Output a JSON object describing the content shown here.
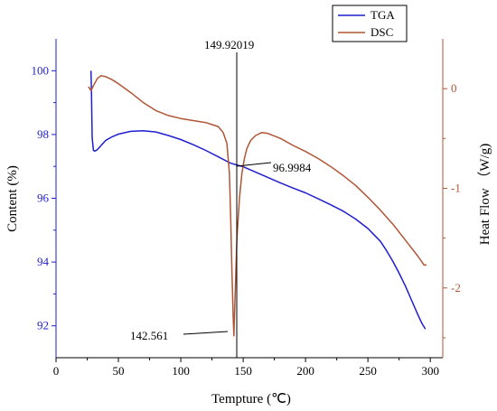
{
  "chart_data": {
    "type": "line",
    "xlabel": "Tempture (℃)",
    "ylabel_left": "Content (%)",
    "ylabel_right": "Heat Flow （W/g)",
    "xlim": [
      0,
      310
    ],
    "ylim_left": [
      91,
      101
    ],
    "ylim_right": [
      -2.7,
      0.5
    ],
    "x_ticks": [
      "0",
      "50",
      "100",
      "150",
      "200",
      "250",
      "300"
    ],
    "y_left_ticks": [
      "92",
      "94",
      "96",
      "98",
      "100"
    ],
    "y_right_ticks": [
      "0",
      "-1",
      "-2"
    ],
    "series": [
      {
        "name": "TGA",
        "axis": "left",
        "color": "#1f1fcf",
        "x": [
          28,
          28.5,
          29,
          30,
          31,
          33,
          36,
          40,
          45,
          50,
          60,
          70,
          80,
          90,
          100,
          110,
          120,
          130,
          140,
          150,
          160,
          170,
          180,
          190,
          200,
          210,
          220,
          230,
          240,
          250,
          260,
          265,
          270,
          275,
          280,
          285,
          290,
          293,
          296
        ],
        "y": [
          100.0,
          99.2,
          97.9,
          97.5,
          97.48,
          97.52,
          97.65,
          97.82,
          97.93,
          98.01,
          98.1,
          98.12,
          98.08,
          97.97,
          97.84,
          97.68,
          97.5,
          97.3,
          97.1,
          96.99,
          96.82,
          96.65,
          96.48,
          96.32,
          96.17,
          95.99,
          95.8,
          95.6,
          95.35,
          95.05,
          94.65,
          94.35,
          94.02,
          93.65,
          93.25,
          92.8,
          92.35,
          92.1,
          91.9
        ]
      },
      {
        "name": "DSC",
        "axis": "right",
        "color": "#b05535",
        "x": [
          26,
          27,
          28,
          30,
          33,
          36,
          40,
          45,
          50,
          60,
          70,
          80,
          90,
          100,
          110,
          120,
          125,
          130,
          134,
          137,
          139,
          140,
          141,
          142,
          142.561,
          143,
          144,
          145,
          147,
          149,
          151,
          153,
          156,
          160,
          165,
          170,
          180,
          190,
          200,
          210,
          220,
          230,
          240,
          250,
          260,
          270,
          280,
          285,
          290,
          295,
          297
        ],
        "y": [
          0.02,
          0.0,
          -0.02,
          0.03,
          0.1,
          0.13,
          0.12,
          0.09,
          0.05,
          -0.04,
          -0.14,
          -0.22,
          -0.27,
          -0.3,
          -0.32,
          -0.34,
          -0.36,
          -0.38,
          -0.44,
          -0.55,
          -0.85,
          -1.3,
          -1.85,
          -2.3,
          -2.48,
          -2.3,
          -1.9,
          -1.5,
          -1.1,
          -0.85,
          -0.7,
          -0.6,
          -0.52,
          -0.47,
          -0.44,
          -0.45,
          -0.5,
          -0.57,
          -0.63,
          -0.7,
          -0.78,
          -0.87,
          -0.97,
          -1.09,
          -1.22,
          -1.36,
          -1.52,
          -1.6,
          -1.68,
          -1.77,
          -1.77
        ]
      }
    ],
    "annotations": [
      {
        "text": "149.92019"
      },
      {
        "text": "96.9984"
      },
      {
        "text": "142.561"
      }
    ]
  }
}
